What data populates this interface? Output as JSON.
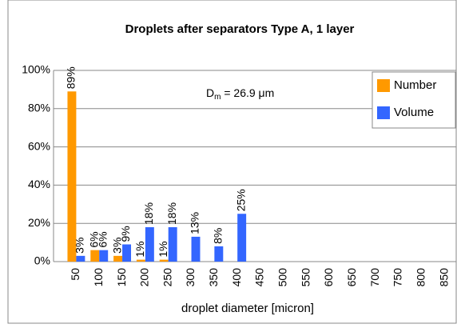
{
  "chart_data": {
    "type": "bar",
    "title": "Droplets after separators Type A, 1 layer",
    "x_label": "droplet diameter [micron]",
    "annotation": {
      "symbol": "D",
      "subscript": "m",
      "text": " = 26.9 μm"
    },
    "categories": [
      "50",
      "100",
      "150",
      "200",
      "250",
      "300",
      "350",
      "400",
      "450",
      "500",
      "550",
      "600",
      "650",
      "700",
      "750",
      "800",
      "850"
    ],
    "series": [
      {
        "name": "Number",
        "color": "#ff9900",
        "values": [
          89,
          6,
          3,
          1,
          1,
          null,
          null,
          null,
          null,
          null,
          null,
          null,
          null,
          null,
          null,
          null,
          null
        ],
        "value_labels": [
          "89%",
          "6%",
          "3%",
          "1%",
          "1%",
          null,
          null,
          null,
          null,
          null,
          null,
          null,
          null,
          null,
          null,
          null,
          null
        ]
      },
      {
        "name": "Volume",
        "color": "#3366ff",
        "values": [
          3,
          6,
          9,
          18,
          18,
          13,
          8,
          25,
          null,
          null,
          null,
          null,
          null,
          null,
          null,
          null,
          null
        ],
        "value_labels": [
          "3%",
          "6%",
          "9%",
          "18%",
          "18%",
          "13%",
          "8%",
          "25%",
          null,
          null,
          null,
          null,
          null,
          null,
          null,
          null,
          null
        ]
      }
    ],
    "ylim": [
      0,
      100
    ],
    "yticks": [
      {
        "value": 0,
        "label": "0%"
      },
      {
        "value": 20,
        "label": "20%"
      },
      {
        "value": 40,
        "label": "40%"
      },
      {
        "value": 60,
        "label": "60%"
      },
      {
        "value": 80,
        "label": "80%"
      },
      {
        "value": 100,
        "label": "100%"
      }
    ],
    "grid": true,
    "legend": "right"
  }
}
